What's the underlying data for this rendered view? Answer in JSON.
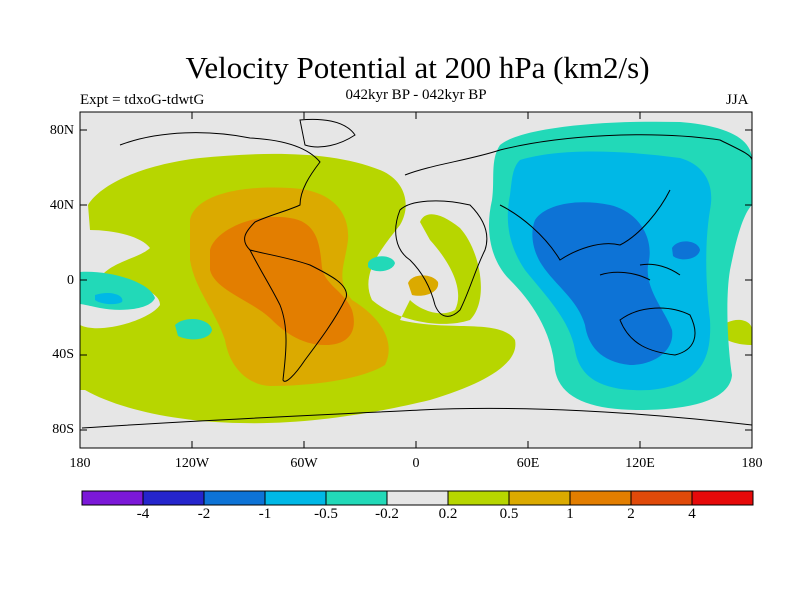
{
  "title": "Velocity Potential at 200 hPa (km2/s)",
  "subtitle": "042kyr BP - 042kyr BP",
  "experiment_label": "Expt = tdxoG-tdwtG",
  "season_label": "JJA",
  "y_ticks": [
    "80N",
    "40N",
    "0",
    "40S",
    "80S"
  ],
  "x_ticks": [
    "180",
    "120W",
    "60W",
    "0",
    "60E",
    "120E",
    "180"
  ],
  "colorbar": {
    "colors": [
      "#7b18d8",
      "#2525cc",
      "#0d73d6",
      "#00b8e6",
      "#22d9b8",
      "#e6e6e6",
      "#b7d600",
      "#dbaa00",
      "#e37e00",
      "#e04a0a",
      "#e60a0a"
    ],
    "labels": [
      "-4",
      "-2",
      "-1",
      "-0.5",
      "-0.2",
      "0.2",
      "0.5",
      "1",
      "2",
      "4"
    ]
  },
  "colors": {
    "background": "#e6e6e6",
    "level_m02": "#22d9b8",
    "level_m05": "#00b8e6",
    "level_m1": "#0d73d6",
    "level_02": "#b7d600",
    "level_05": "#dbaa00",
    "level_1": "#e37e00"
  }
}
